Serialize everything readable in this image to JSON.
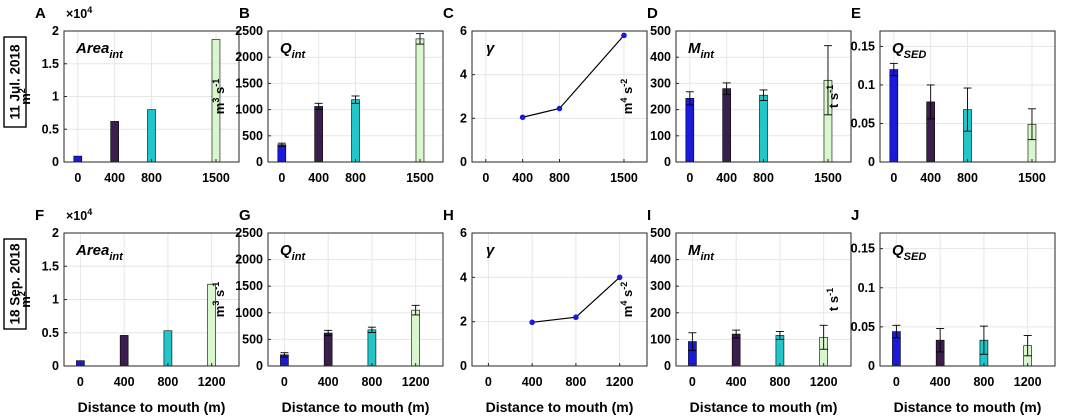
{
  "colors": {
    "c0": "#1a1adc",
    "c400": "#3b1e4e",
    "c800": "#22c6c8",
    "c1200": "#d9f7cf",
    "line": "#000000",
    "point": "#1a1adc"
  },
  "figure": {
    "row_labels": [
      "11 Jul. 2018",
      "18 Sep. 2018"
    ],
    "x_axis_label": "Distance to mouth (m)"
  },
  "chart_data": [
    {
      "panel": "A",
      "type": "bar",
      "row": 0,
      "col": 0,
      "title_main": "Area",
      "title_sub": "int",
      "ylabel": "m^2",
      "ylabel_main": "m",
      "ylabel_sup": "2",
      "ylabel_rest": "",
      "multiplier": "×10",
      "multiplier_exp": "4",
      "ylim": [
        0,
        2
      ],
      "yticks": [
        0,
        0.5,
        1,
        1.5,
        2
      ],
      "ytick_labels": [
        "0",
        "0.5",
        "1",
        "1.5",
        "2"
      ],
      "xlim": [
        -150,
        1750
      ],
      "categories": [
        "0",
        "400",
        "800",
        "1500"
      ],
      "x": [
        0,
        400,
        800,
        1500
      ],
      "values": [
        0.09,
        0.62,
        0.8,
        1.87
      ],
      "errors": null
    },
    {
      "panel": "B",
      "type": "bar",
      "row": 0,
      "col": 1,
      "title_main": "Q",
      "title_sub": "int",
      "ylabel": "m^3 s^-1",
      "ylabel_main": "m",
      "ylabel_sup": "3",
      "ylabel_rest": " s",
      "ylabel_sup2": "-1",
      "ylim": [
        0,
        2500
      ],
      "yticks": [
        0,
        500,
        1000,
        1500,
        2000,
        2500
      ],
      "ytick_labels": [
        "0",
        "500",
        "1000",
        "1500",
        "2000",
        "2500"
      ],
      "xlim": [
        -150,
        1750
      ],
      "categories": [
        "0",
        "400",
        "800",
        "1500"
      ],
      "x": [
        0,
        400,
        800,
        1500
      ],
      "values": [
        330,
        1060,
        1190,
        2350
      ],
      "errors": [
        30,
        60,
        70,
        100
      ]
    },
    {
      "panel": "C",
      "type": "line",
      "row": 0,
      "col": 2,
      "title_main": "γ",
      "title_sub": "",
      "ylim": [
        0,
        6
      ],
      "yticks": [
        0,
        2,
        4,
        6
      ],
      "ytick_labels": [
        "0",
        "2",
        "4",
        "6"
      ],
      "xlim": [
        -150,
        1750
      ],
      "categories": [
        "0",
        "400",
        "800",
        "1500"
      ],
      "x_ticks": [
        0,
        400,
        800,
        1500
      ],
      "x": [
        400,
        800,
        1500
      ],
      "values": [
        2.05,
        2.45,
        5.8
      ]
    },
    {
      "panel": "D",
      "type": "bar",
      "row": 0,
      "col": 3,
      "title_main": "M",
      "title_sub": "int",
      "ylabel": "m^4 s^-2",
      "ylabel_main": "m",
      "ylabel_sup": "4",
      "ylabel_rest": " s",
      "ylabel_sup2": "-2",
      "ylim": [
        0,
        500
      ],
      "yticks": [
        0,
        100,
        200,
        300,
        400,
        500
      ],
      "ytick_labels": [
        "0",
        "100",
        "200",
        "300",
        "400",
        "500"
      ],
      "xlim": [
        -150,
        1750
      ],
      "categories": [
        "0",
        "400",
        "800",
        "1500"
      ],
      "x": [
        0,
        400,
        800,
        1500
      ],
      "values": [
        243,
        280,
        255,
        312
      ],
      "errors": [
        25,
        22,
        20,
        132
      ]
    },
    {
      "panel": "E",
      "type": "bar",
      "row": 0,
      "col": 4,
      "title_main": "Q",
      "title_sub": "SED",
      "ylabel": "t s^-1",
      "ylabel_main": "t s",
      "ylabel_sup": "-1",
      "ylabel_rest": "",
      "ylim": [
        0,
        0.17
      ],
      "yticks": [
        0,
        0.05,
        0.1,
        0.15
      ],
      "ytick_labels": [
        "0",
        "0.05",
        "0.1",
        "0.15"
      ],
      "xlim": [
        -150,
        1750
      ],
      "categories": [
        "0",
        "400",
        "800",
        "1500"
      ],
      "x": [
        0,
        400,
        800,
        1500
      ],
      "values": [
        0.12,
        0.078,
        0.068,
        0.049
      ],
      "errors": [
        0.008,
        0.022,
        0.028,
        0.02
      ]
    },
    {
      "panel": "F",
      "type": "bar",
      "row": 1,
      "col": 0,
      "title_main": "Area",
      "title_sub": "int",
      "ylabel": "m^2",
      "ylabel_main": "m",
      "ylabel_sup": "2",
      "ylabel_rest": "",
      "multiplier": "×10",
      "multiplier_exp": "4",
      "ylim": [
        0,
        2
      ],
      "yticks": [
        0,
        0.5,
        1,
        1.5,
        2
      ],
      "ytick_labels": [
        "0",
        "0.5",
        "1",
        "1.5",
        "2"
      ],
      "xlim": [
        -150,
        1450
      ],
      "categories": [
        "0",
        "400",
        "800",
        "1200"
      ],
      "x": [
        0,
        400,
        800,
        1200
      ],
      "values": [
        0.08,
        0.46,
        0.53,
        1.23
      ],
      "errors": null
    },
    {
      "panel": "G",
      "type": "bar",
      "row": 1,
      "col": 1,
      "title_main": "Q",
      "title_sub": "int",
      "ylabel": "m^3 s^-1",
      "ylabel_main": "m",
      "ylabel_sup": "3",
      "ylabel_rest": " s",
      "ylabel_sup2": "-1",
      "ylim": [
        0,
        2500
      ],
      "yticks": [
        0,
        500,
        1000,
        1500,
        2000,
        2500
      ],
      "ytick_labels": [
        "0",
        "500",
        "1000",
        "1500",
        "2000",
        "2500"
      ],
      "xlim": [
        -150,
        1450
      ],
      "categories": [
        "0",
        "400",
        "800",
        "1200"
      ],
      "x": [
        0,
        400,
        800,
        1200
      ],
      "values": [
        210,
        620,
        680,
        1050
      ],
      "errors": [
        40,
        50,
        50,
        90
      ]
    },
    {
      "panel": "H",
      "type": "line",
      "row": 1,
      "col": 2,
      "title_main": "γ",
      "title_sub": "",
      "ylim": [
        0,
        6
      ],
      "yticks": [
        0,
        2,
        4,
        6
      ],
      "ytick_labels": [
        "0",
        "2",
        "4",
        "6"
      ],
      "xlim": [
        -150,
        1450
      ],
      "categories": [
        "0",
        "400",
        "800",
        "1200"
      ],
      "x_ticks": [
        0,
        400,
        800,
        1200
      ],
      "x": [
        400,
        800,
        1200
      ],
      "values": [
        1.97,
        2.2,
        4.0
      ]
    },
    {
      "panel": "I",
      "type": "bar",
      "row": 1,
      "col": 3,
      "title_main": "M",
      "title_sub": "int",
      "ylabel": "m^4 s^-2",
      "ylabel_main": "m",
      "ylabel_sup": "4",
      "ylabel_rest": " s",
      "ylabel_sup2": "-2",
      "ylim": [
        0,
        500
      ],
      "yticks": [
        0,
        100,
        200,
        300,
        400,
        500
      ],
      "ytick_labels": [
        "0",
        "100",
        "200",
        "300",
        "400",
        "500"
      ],
      "xlim": [
        -150,
        1450
      ],
      "categories": [
        "0",
        "400",
        "800",
        "1200"
      ],
      "x": [
        0,
        400,
        800,
        1200
      ],
      "values": [
        92,
        120,
        115,
        108
      ],
      "errors": [
        33,
        15,
        15,
        45
      ]
    },
    {
      "panel": "J",
      "type": "bar",
      "row": 1,
      "col": 4,
      "title_main": "Q",
      "title_sub": "SED",
      "ylabel": "t s^-1",
      "ylabel_main": "t s",
      "ylabel_sup": "-1",
      "ylabel_rest": "",
      "ylim": [
        0,
        0.17
      ],
      "yticks": [
        0,
        0.05,
        0.1,
        0.15
      ],
      "ytick_labels": [
        "0",
        "0.05",
        "0.1",
        "0.15"
      ],
      "xlim": [
        -150,
        1450
      ],
      "categories": [
        "0",
        "400",
        "800",
        "1200"
      ],
      "x": [
        0,
        400,
        800,
        1200
      ],
      "values": [
        0.044,
        0.033,
        0.033,
        0.026
      ],
      "errors": [
        0.008,
        0.015,
        0.018,
        0.013
      ]
    }
  ]
}
